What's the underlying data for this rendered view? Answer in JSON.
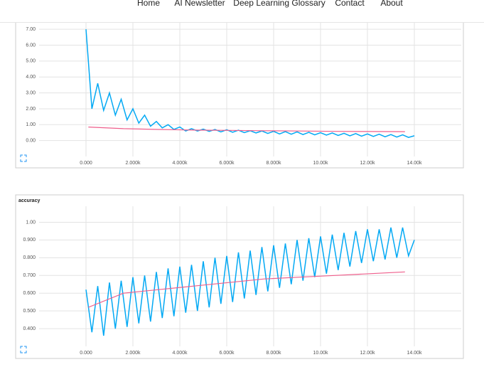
{
  "nav": {
    "items": [
      "Home",
      "AI Newsletter",
      "Deep Learning Glossary",
      "Contact",
      "About"
    ]
  },
  "chart_data": [
    {
      "type": "line",
      "grid": true,
      "xlim": [
        -2000,
        16000
      ],
      "xticks": [
        {
          "value": 0,
          "label": "0.000"
        },
        {
          "value": 2000,
          "label": "2.000k"
        },
        {
          "value": 4000,
          "label": "4.000k"
        },
        {
          "value": 6000,
          "label": "6.000k"
        },
        {
          "value": 8000,
          "label": "8.000k"
        },
        {
          "value": 10000,
          "label": "10.00k"
        },
        {
          "value": 12000,
          "label": "12.00k"
        },
        {
          "value": 14000,
          "label": "14.00k"
        }
      ],
      "ylim": [
        -1,
        7.5
      ],
      "yticks": [
        {
          "value": 0,
          "label": "0.00"
        },
        {
          "value": 1,
          "label": "1.00"
        },
        {
          "value": 2,
          "label": "2.00"
        },
        {
          "value": 3,
          "label": "3.00"
        },
        {
          "value": 4,
          "label": "4.00"
        },
        {
          "value": 5,
          "label": "5.00"
        },
        {
          "value": 6,
          "label": "6.00"
        },
        {
          "value": 7,
          "label": "7.00"
        }
      ],
      "series": [
        {
          "color": "#03a9f4",
          "x": [
            0,
            250,
            500,
            750,
            1000,
            1250,
            1500,
            1750,
            2000,
            2250,
            2500,
            2750,
            3000,
            3250,
            3500,
            3750,
            4000,
            4250,
            4500,
            4750,
            5000,
            5250,
            5500,
            5750,
            6000,
            6250,
            6500,
            6750,
            7000,
            7250,
            7500,
            7750,
            8000,
            8250,
            8500,
            8750,
            9000,
            9250,
            9500,
            9750,
            10000,
            10250,
            10500,
            10750,
            11000,
            11250,
            11500,
            11750,
            12000,
            12250,
            12500,
            12750,
            13000,
            13250,
            13500,
            13750,
            14000
          ],
          "values": [
            7.0,
            2.0,
            3.6,
            1.9,
            3.0,
            1.6,
            2.6,
            1.3,
            2.0,
            1.1,
            1.6,
            0.9,
            1.2,
            0.8,
            1.0,
            0.7,
            0.85,
            0.6,
            0.75,
            0.6,
            0.72,
            0.58,
            0.7,
            0.55,
            0.68,
            0.52,
            0.65,
            0.5,
            0.62,
            0.48,
            0.6,
            0.45,
            0.58,
            0.42,
            0.56,
            0.4,
            0.55,
            0.38,
            0.52,
            0.36,
            0.5,
            0.34,
            0.48,
            0.32,
            0.46,
            0.3,
            0.44,
            0.28,
            0.42,
            0.26,
            0.4,
            0.24,
            0.38,
            0.22,
            0.36,
            0.2,
            0.3
          ]
        },
        {
          "color": "#ef5f8c",
          "x": [
            100,
            1600,
            3100,
            4600,
            6100,
            7600,
            9100,
            10600,
            12100,
            13600
          ],
          "values": [
            0.85,
            0.75,
            0.7,
            0.66,
            0.64,
            0.62,
            0.6,
            0.58,
            0.57,
            0.56
          ]
        }
      ]
    },
    {
      "type": "line",
      "title": "accuracy",
      "grid": true,
      "xlim": [
        -2000,
        16000
      ],
      "xticks": [
        {
          "value": 0,
          "label": "0.000"
        },
        {
          "value": 2000,
          "label": "2.000k"
        },
        {
          "value": 4000,
          "label": "4.000k"
        },
        {
          "value": 6000,
          "label": "6.000k"
        },
        {
          "value": 8000,
          "label": "8.000k"
        },
        {
          "value": 10000,
          "label": "10.00k"
        },
        {
          "value": 12000,
          "label": "12.00k"
        },
        {
          "value": 14000,
          "label": "14.00k"
        }
      ],
      "ylim": [
        0.3,
        1.09
      ],
      "yticks": [
        {
          "value": 0.4,
          "label": "0.400"
        },
        {
          "value": 0.5,
          "label": "0.500"
        },
        {
          "value": 0.6,
          "label": "0.600"
        },
        {
          "value": 0.7,
          "label": "0.700"
        },
        {
          "value": 0.8,
          "label": "0.800"
        },
        {
          "value": 0.9,
          "label": "0.900"
        },
        {
          "value": 1,
          "label": "1.00"
        }
      ],
      "series": [
        {
          "color": "#03a9f4",
          "x": [
            0,
            250,
            500,
            750,
            1000,
            1250,
            1500,
            1750,
            2000,
            2250,
            2500,
            2750,
            3000,
            3250,
            3500,
            3750,
            4000,
            4250,
            4500,
            4750,
            5000,
            5250,
            5500,
            5750,
            6000,
            6250,
            6500,
            6750,
            7000,
            7250,
            7500,
            7750,
            8000,
            8250,
            8500,
            8750,
            9000,
            9250,
            9500,
            9750,
            10000,
            10250,
            10500,
            10750,
            11000,
            11250,
            11500,
            11750,
            12000,
            12250,
            12500,
            12750,
            13000,
            13250,
            13500,
            13750,
            14000
          ],
          "values": [
            0.62,
            0.38,
            0.64,
            0.36,
            0.66,
            0.4,
            0.67,
            0.41,
            0.69,
            0.43,
            0.7,
            0.44,
            0.72,
            0.46,
            0.74,
            0.47,
            0.75,
            0.49,
            0.76,
            0.5,
            0.78,
            0.52,
            0.8,
            0.54,
            0.81,
            0.55,
            0.83,
            0.57,
            0.84,
            0.59,
            0.86,
            0.61,
            0.87,
            0.63,
            0.88,
            0.65,
            0.9,
            0.67,
            0.91,
            0.69,
            0.92,
            0.71,
            0.93,
            0.73,
            0.94,
            0.75,
            0.95,
            0.77,
            0.96,
            0.78,
            0.96,
            0.79,
            0.97,
            0.8,
            0.97,
            0.81,
            0.9
          ]
        },
        {
          "color": "#ef5f8c",
          "x": [
            100,
            1600,
            3100,
            4600,
            6100,
            7600,
            9100,
            10600,
            12100,
            13600
          ],
          "values": [
            0.52,
            0.6,
            0.62,
            0.64,
            0.66,
            0.68,
            0.69,
            0.7,
            0.71,
            0.72
          ]
        }
      ]
    }
  ]
}
